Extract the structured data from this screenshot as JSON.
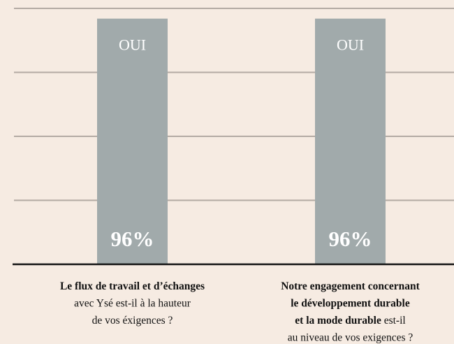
{
  "chart_data": {
    "type": "bar",
    "categories": [
      [
        [
          {
            "text": "Le flux de travail et d’échanges",
            "bold": true
          }
        ],
        [
          {
            "text": "avec Ysé est-il à la hauteur",
            "bold": false
          }
        ],
        [
          {
            "text": "de vos éxigences ?",
            "bold": false
          }
        ]
      ],
      [
        [
          {
            "text": "Notre engagement concernant",
            "bold": true
          }
        ],
        [
          {
            "text": "le développement durable",
            "bold": true
          }
        ],
        [
          {
            "text": "et la mode durable",
            "bold": true
          },
          {
            "text": " est-il",
            "bold": false
          }
        ],
        [
          {
            "text": "au niveau de vos exigences ?",
            "bold": false
          }
        ]
      ]
    ],
    "values": [
      96,
      96
    ],
    "value_labels": [
      "96%",
      "96%"
    ],
    "bar_labels": [
      "OUI",
      "OUI"
    ],
    "color": "#a1aaab",
    "ylim": [
      0,
      100
    ],
    "yticks": [
      25,
      50,
      75,
      100
    ],
    "grid": true
  }
}
